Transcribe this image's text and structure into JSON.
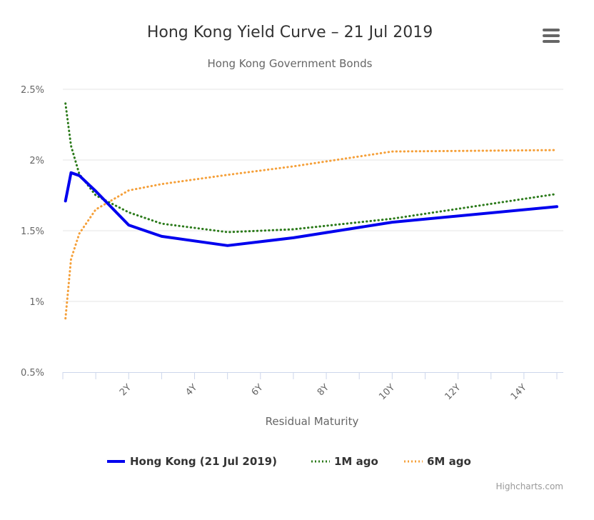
{
  "chart_data": {
    "type": "line",
    "title": "Hong Kong Yield Curve – 21 Jul 2019",
    "subtitle": "Hong Kong Government Bonds",
    "xlabel": "Residual Maturity",
    "ylabel": "",
    "x_unit": "years",
    "xlim": [
      0,
      15
    ],
    "ylim": [
      0.5,
      2.5
    ],
    "y_ticks": [
      0.5,
      1,
      1.5,
      2,
      2.5
    ],
    "y_tick_labels": [
      "0.5%",
      "1%",
      "1.5%",
      "2%",
      "2.5%"
    ],
    "x_ticks": [
      2,
      4,
      6,
      8,
      10,
      12,
      14
    ],
    "x_tick_labels": [
      "2Y",
      "4Y",
      "6Y",
      "8Y",
      "10Y",
      "12Y",
      "14Y"
    ],
    "grid": true,
    "legend_position": "bottom-center",
    "series": [
      {
        "name": "Hong Kong (21 Jul 2019)",
        "color": "#0000ee",
        "style": "solid",
        "points": [
          {
            "x": 0.08,
            "y": 1.71
          },
          {
            "x": 0.25,
            "y": 1.91
          },
          {
            "x": 0.5,
            "y": 1.89
          },
          {
            "x": 1,
            "y": 1.78
          },
          {
            "x": 2,
            "y": 1.54
          },
          {
            "x": 3,
            "y": 1.46
          },
          {
            "x": 5,
            "y": 1.395
          },
          {
            "x": 7,
            "y": 1.45
          },
          {
            "x": 10,
            "y": 1.56
          },
          {
            "x": 15,
            "y": 1.67
          }
        ]
      },
      {
        "name": "1M ago",
        "color": "#2b7a1a",
        "style": "dotted",
        "points": [
          {
            "x": 0.08,
            "y": 2.4
          },
          {
            "x": 0.25,
            "y": 2.1
          },
          {
            "x": 0.5,
            "y": 1.9
          },
          {
            "x": 1,
            "y": 1.75
          },
          {
            "x": 2,
            "y": 1.63
          },
          {
            "x": 3,
            "y": 1.55
          },
          {
            "x": 5,
            "y": 1.49
          },
          {
            "x": 7,
            "y": 1.51
          },
          {
            "x": 10,
            "y": 1.585
          },
          {
            "x": 15,
            "y": 1.76
          }
        ]
      },
      {
        "name": "6M ago",
        "color": "#f5a03a",
        "style": "dotted",
        "points": [
          {
            "x": 0.08,
            "y": 0.88
          },
          {
            "x": 0.25,
            "y": 1.3
          },
          {
            "x": 0.5,
            "y": 1.48
          },
          {
            "x": 1,
            "y": 1.65
          },
          {
            "x": 2,
            "y": 1.785
          },
          {
            "x": 3,
            "y": 1.83
          },
          {
            "x": 5,
            "y": 1.895
          },
          {
            "x": 7,
            "y": 1.955
          },
          {
            "x": 10,
            "y": 2.06
          },
          {
            "x": 15,
            "y": 2.07
          }
        ]
      }
    ]
  },
  "ui": {
    "menu_icon": "hamburger-menu-icon",
    "credits": "Highcharts.com"
  }
}
